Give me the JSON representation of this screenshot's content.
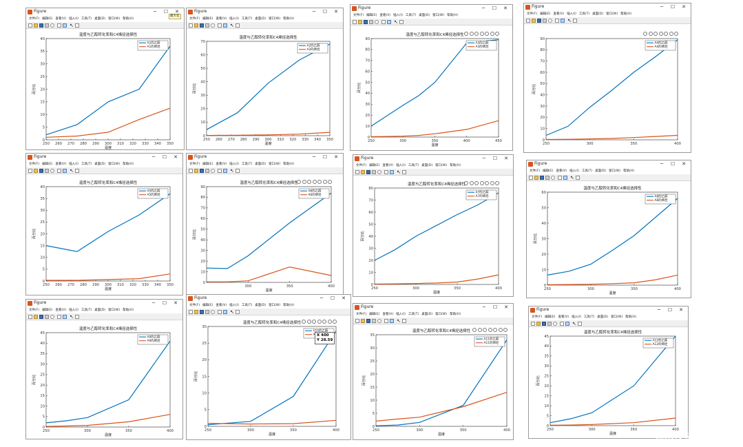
{
  "menus": [
    "文件(F)",
    "编辑(E)",
    "查看(V)",
    "插入(I)",
    "工具(T)",
    "桌面(D)",
    "窗口(W)",
    "帮助(H)"
  ],
  "plot_title": "温度与乙醇转化率和C4烯烃选择性",
  "xlabel": "温度",
  "ylabel": "百分比",
  "colors": {
    "conversion": "#0072bd",
    "selectivity": "#d95319"
  },
  "maximize_tooltip": "最大化",
  "datatip": {
    "x_label": "X 400",
    "y_label": "Y 28.59"
  },
  "watermark": "CSDN @川川菜鸟",
  "chart_data": [
    {
      "type": "line",
      "window_title": "Figure",
      "title": "温度与乙醇转化率和C4烯烃选择性",
      "xlabel": "温度",
      "ylabel": "百分比",
      "xlim": [
        250,
        350
      ],
      "ylim": [
        0,
        40
      ],
      "xticks": [
        250,
        260,
        270,
        280,
        290,
        300,
        310,
        320,
        330,
        340,
        350
      ],
      "yticks": [
        0,
        5,
        10,
        15,
        20,
        25,
        30,
        35,
        40
      ],
      "legend_position": "top-right",
      "series": [
        {
          "name": "A1的乙醇",
          "x": [
            250,
            275,
            300,
            325,
            350
          ],
          "values": [
            2,
            6,
            15,
            20,
            37
          ]
        },
        {
          "name": "A1的烯烃",
          "x": [
            250,
            275,
            300,
            325,
            350
          ],
          "values": [
            1,
            1.5,
            3,
            8,
            12.5
          ]
        }
      ]
    },
    {
      "type": "line",
      "window_title": "Figure",
      "title": "温度与乙醇转化率和C4烯烃选择性",
      "xlabel": "温度",
      "ylabel": "百分比",
      "xlim": [
        250,
        350
      ],
      "ylim": [
        0,
        70
      ],
      "xticks": [
        250,
        260,
        270,
        280,
        290,
        300,
        310,
        320,
        330,
        340,
        350
      ],
      "yticks": [
        0,
        10,
        20,
        30,
        40,
        50,
        60,
        70
      ],
      "legend_position": "top-right",
      "series": [
        {
          "name": "A2的乙醇",
          "x": [
            250,
            275,
            300,
            325,
            350
          ],
          "values": [
            4.5,
            17,
            39,
            56,
            68
          ]
        },
        {
          "name": "A2的烯烃",
          "x": [
            250,
            275,
            300,
            325,
            350
          ],
          "values": [
            0.2,
            0.3,
            0.6,
            1.2,
            2.5
          ]
        }
      ]
    },
    {
      "type": "line",
      "window_title": "Figure",
      "title": "温度与乙醇转化率和C4烯烃选择性",
      "xlabel": "温度",
      "ylabel": "百分比",
      "xlim": [
        250,
        450
      ],
      "ylim": [
        0,
        90
      ],
      "xticks": [
        250,
        300,
        350,
        400,
        450
      ],
      "yticks": [
        0,
        10,
        20,
        30,
        40,
        50,
        60,
        70,
        80,
        90
      ],
      "legend_position": "top-right",
      "series": [
        {
          "name": "A3的乙醇",
          "x": [
            250,
            300,
            325,
            350,
            400,
            450
          ],
          "values": [
            10,
            29,
            38,
            50,
            86,
            89
          ]
        },
        {
          "name": "A3的烯烃",
          "x": [
            250,
            300,
            325,
            350,
            400,
            450
          ],
          "values": [
            0.3,
            0.8,
            1.5,
            3,
            7,
            15
          ]
        }
      ]
    },
    {
      "type": "line",
      "window_title": "Figure",
      "title": "",
      "xlabel": "",
      "ylabel": "百分比",
      "xlim": [
        250,
        400
      ],
      "ylim": [
        0,
        90
      ],
      "xticks": [
        250,
        300,
        350,
        400
      ],
      "yticks": [
        0,
        10,
        20,
        30,
        40,
        50,
        60,
        70,
        80,
        90
      ],
      "legend_position": "top-right",
      "series": [
        {
          "name": "A4的乙醇",
          "x": [
            250,
            275,
            300,
            325,
            350,
            375,
            400
          ],
          "values": [
            4,
            12,
            29,
            44,
            60,
            74,
            89
          ]
        },
        {
          "name": "A4的烯烃",
          "x": [
            250,
            275,
            300,
            325,
            350,
            375,
            400
          ],
          "values": [
            0.3,
            0.5,
            0.8,
            1.2,
            2,
            3,
            4
          ]
        }
      ]
    },
    {
      "type": "line",
      "window_title": "Figure",
      "title": "温度与乙醇转化率和C4烯烃选择性",
      "xlabel": "温度",
      "ylabel": "百分比",
      "xlim": [
        250,
        350
      ],
      "ylim": [
        0,
        40
      ],
      "xticks": [
        250,
        260,
        270,
        280,
        290,
        300,
        310,
        320,
        330,
        340,
        350
      ],
      "yticks": [
        0,
        5,
        10,
        15,
        20,
        25,
        30,
        35,
        40
      ],
      "legend_position": "top-right",
      "series": [
        {
          "name": "A5的乙醇",
          "x": [
            250,
            275,
            300,
            325,
            350
          ],
          "values": [
            15,
            12.5,
            21,
            28,
            37
          ]
        },
        {
          "name": "A5的烯烃",
          "x": [
            250,
            275,
            300,
            325,
            350
          ],
          "values": [
            0.3,
            0.3,
            0.6,
            1,
            3
          ]
        }
      ]
    },
    {
      "type": "line",
      "window_title": "Figure",
      "title": "温度与乙醇转化率和C4烯烃选择性",
      "xlabel": "温度",
      "ylabel": "百分比",
      "xlim": [
        250,
        400
      ],
      "ylim": [
        0,
        90
      ],
      "xticks": [
        300,
        350,
        400
      ],
      "yticks": [
        0,
        10,
        20,
        30,
        40,
        50,
        60,
        70,
        80,
        90
      ],
      "legend_position": "top-right",
      "series": [
        {
          "name": "A6的乙醇",
          "x": [
            250,
            275,
            300,
            350,
            400
          ],
          "values": [
            13.5,
            13,
            25,
            56,
            84
          ]
        },
        {
          "name": "A6的烯烃",
          "x": [
            250,
            275,
            300,
            350,
            400
          ],
          "values": [
            0.5,
            0.5,
            1.5,
            14.5,
            6.5
          ]
        }
      ]
    },
    {
      "type": "line",
      "window_title": "Figure",
      "title": "温度与乙醇转化率和C4烯烃选择性",
      "xlabel": "温度",
      "ylabel": "百分比",
      "xlim": [
        250,
        400
      ],
      "ylim": [
        0,
        80
      ],
      "xticks": [
        250,
        300,
        350,
        400
      ],
      "yticks": [
        0,
        10,
        20,
        30,
        40,
        50,
        60,
        70,
        80
      ],
      "legend_position": "top-right",
      "series": [
        {
          "name": "A7的乙醇",
          "x": [
            250,
            275,
            300,
            325,
            350,
            375,
            400
          ],
          "values": [
            20,
            29,
            40,
            49,
            58,
            66,
            76
          ]
        },
        {
          "name": "A7的烯烃",
          "x": [
            250,
            275,
            300,
            325,
            350,
            375,
            400
          ],
          "values": [
            0.3,
            0.5,
            0.8,
            1.2,
            2,
            4.5,
            8
          ]
        }
      ]
    },
    {
      "type": "line",
      "window_title": "Figure",
      "title": "温度与乙醇转化率和C4烯烃选择性",
      "xlabel": "温度",
      "ylabel": "百分比",
      "xlim": [
        250,
        400
      ],
      "ylim": [
        0,
        60
      ],
      "xticks": [
        250,
        300,
        350,
        400
      ],
      "yticks": [
        0,
        10,
        20,
        30,
        40,
        50,
        60
      ],
      "legend_position": "top-right",
      "series": [
        {
          "name": "A8的乙醇",
          "x": [
            250,
            275,
            300,
            325,
            350,
            375,
            400
          ],
          "values": [
            6.5,
            9,
            13.5,
            22.5,
            32,
            44,
            56
          ]
        },
        {
          "name": "A8的烯烃",
          "x": [
            250,
            275,
            300,
            325,
            350,
            375,
            400
          ],
          "values": [
            0.3,
            0.4,
            0.6,
            1,
            1.5,
            3.5,
            6.5
          ]
        }
      ]
    },
    {
      "type": "line",
      "window_title": "Figure",
      "title": "温度与乙醇转化率和C4烯烃选择性",
      "xlabel": "温度",
      "ylabel": "百分比",
      "xlim": [
        250,
        400
      ],
      "ylim": [
        0,
        45
      ],
      "xticks": [
        250,
        300,
        350,
        400
      ],
      "yticks": [
        0,
        5,
        10,
        15,
        20,
        25,
        30,
        35,
        40,
        45
      ],
      "legend_position": "top-right",
      "series": [
        {
          "name": "A9的乙醇",
          "x": [
            250,
            275,
            300,
            350,
            400
          ],
          "values": [
            2,
            3,
            4.5,
            13,
            41
          ]
        },
        {
          "name": "A9的烯烃",
          "x": [
            250,
            275,
            300,
            350,
            400
          ],
          "values": [
            0.3,
            0.5,
            0.8,
            2.5,
            6
          ]
        }
      ]
    },
    {
      "type": "line",
      "window_title": "Figure",
      "title": "温度与乙醇转化率和C4烯烃选择性",
      "xlabel": "温度",
      "ylabel": "百分比",
      "xlim": [
        250,
        400
      ],
      "ylim": [
        0,
        30
      ],
      "xticks": [
        250,
        300,
        350,
        400
      ],
      "yticks": [
        0,
        5,
        10,
        15,
        20,
        25,
        30
      ],
      "legend_position": "top-right",
      "series": [
        {
          "name": "A10的乙醇",
          "x": [
            250,
            300,
            350,
            400
          ],
          "values": [
            0.5,
            1.5,
            9,
            28.59
          ]
        },
        {
          "name": "A10的烯烃",
          "x": [
            250,
            300,
            350,
            400
          ],
          "values": [
            0.9,
            0.7,
            0.8,
            1.8
          ]
        }
      ]
    },
    {
      "type": "line",
      "window_title": "Figure",
      "title": "温度与乙醇转化率和C4烯烃选择性",
      "xlabel": "温度",
      "ylabel": "百分比",
      "xlim": [
        250,
        400
      ],
      "ylim": [
        0,
        35
      ],
      "xticks": [
        250,
        300,
        350,
        400
      ],
      "yticks": [
        0,
        5,
        10,
        15,
        20,
        25,
        30,
        35
      ],
      "legend_position": "top-right",
      "series": [
        {
          "name": "A11的乙醇",
          "x": [
            250,
            275,
            300,
            350,
            400
          ],
          "values": [
            0.2,
            0.5,
            1.5,
            8,
            33
          ]
        },
        {
          "name": "A11的烯烃",
          "x": [
            250,
            275,
            300,
            350,
            400
          ],
          "values": [
            2,
            2.8,
            3.5,
            7.5,
            13
          ]
        }
      ]
    },
    {
      "type": "line",
      "window_title": "Figure",
      "title": "温度与乙醇转化率和C4烯烃选择性",
      "xlabel": "温度",
      "ylabel": "百分比",
      "xlim": [
        250,
        400
      ],
      "ylim": [
        0,
        45
      ],
      "xticks": [
        250,
        300,
        350,
        400
      ],
      "yticks": [
        0,
        5,
        10,
        15,
        20,
        25,
        30,
        35,
        40,
        45
      ],
      "legend_position": "top-right",
      "series": [
        {
          "name": "A12的乙醇",
          "x": [
            250,
            275,
            300,
            350,
            400
          ],
          "values": [
            1.5,
            3.5,
            6.5,
            20,
            45
          ]
        },
        {
          "name": "A12的烯烃",
          "x": [
            250,
            275,
            300,
            350,
            400
          ],
          "values": [
            0.2,
            0.3,
            0.6,
            1.5,
            3.8
          ]
        }
      ]
    }
  ]
}
